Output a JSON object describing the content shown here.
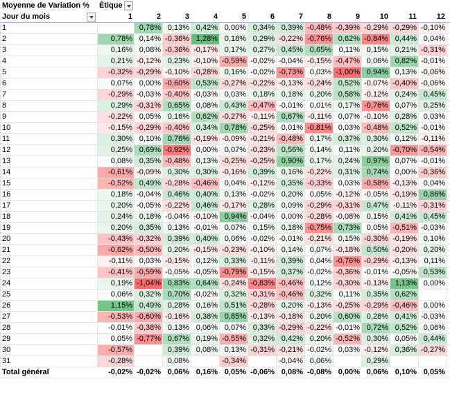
{
  "header": {
    "value_label": "Moyenne de Variation %",
    "column_label": "Étique",
    "row_label": "Jour du mois"
  },
  "columns": [
    1,
    2,
    3,
    4,
    5,
    6,
    7,
    8,
    9,
    10,
    11,
    12
  ],
  "rows": [
    {
      "label": "1",
      "cells": [
        null,
        "0,78%",
        "0,13%",
        "0,42%",
        "0,00%",
        "0,34%",
        "0,39%",
        "-0,48%",
        "-0,39%",
        "-0,29%",
        "-0,29%",
        "-0,10%"
      ]
    },
    {
      "label": "2",
      "cells": [
        "0,78%",
        "0,14%",
        "-0,36%",
        "1,28%",
        "0,18%",
        "0,29%",
        "-0,22%",
        "-0,76%",
        "0,62%",
        "-0,84%",
        "0,44%",
        "0,04%"
      ]
    },
    {
      "label": "3",
      "cells": [
        "0,16%",
        "0,08%",
        "-0,36%",
        "-0,17%",
        "0,17%",
        "0,27%",
        "0,45%",
        "0,65%",
        "0,11%",
        "0,15%",
        "0,21%",
        "-0,31%"
      ]
    },
    {
      "label": "4",
      "cells": [
        "0,21%",
        "-0,12%",
        "0,23%",
        "-0,10%",
        "-0,59%",
        "-0,02%",
        "-0,04%",
        "-0,15%",
        "-0,47%",
        "0,06%",
        "0,82%",
        "-0,01%"
      ]
    },
    {
      "label": "5",
      "cells": [
        "-0,32%",
        "-0,29%",
        "-0,10%",
        "-0,28%",
        "0,16%",
        "-0,02%",
        "-0,73%",
        "0,03%",
        "-1,00%",
        "0,94%",
        "0,13%",
        "-0,06%"
      ]
    },
    {
      "label": "6",
      "cells": [
        "0,07%",
        "0,00%",
        "-0,60%",
        "0,53%",
        "-0,27%",
        "-0,22%",
        "-0,13%",
        "-0,24%",
        "0,52%",
        "-0,07%",
        "-0,40%",
        "-0,06%"
      ]
    },
    {
      "label": "7",
      "cells": [
        "-0,29%",
        "-0,03%",
        "-0,40%",
        "-0,03%",
        "0,03%",
        "0,18%",
        "0,18%",
        "0,20%",
        "0,58%",
        "-0,12%",
        "0,24%",
        "0,45%"
      ]
    },
    {
      "label": "8",
      "cells": [
        "0,29%",
        "-0,31%",
        "0,65%",
        "0,08%",
        "0,43%",
        "-0,47%",
        "-0,01%",
        "0,01%",
        "0,17%",
        "-0,76%",
        "0,07%",
        "0,25%"
      ]
    },
    {
      "label": "9",
      "cells": [
        "-0,22%",
        "0,05%",
        "0,16%",
        "0,62%",
        "-0,27%",
        "-0,11%",
        "0,67%",
        "-0,11%",
        "0,07%",
        "-0,10%",
        "0,28%",
        "0,03%"
      ]
    },
    {
      "label": "10",
      "cells": [
        "-0,15%",
        "-0,29%",
        "-0,40%",
        "0,34%",
        "0,78%",
        "-0,25%",
        "0,01%",
        "-0,81%",
        "0,03%",
        "-0,48%",
        "0,52%",
        "-0,01%"
      ]
    },
    {
      "label": "11",
      "cells": [
        "0,30%",
        "0,10%",
        "0,76%",
        "-0,19%",
        "-0,09%",
        "-0,21%",
        "-0,48%",
        "0,17%",
        "0,37%",
        "0,30%",
        "0,12%",
        "-0,11%"
      ]
    },
    {
      "label": "12",
      "cells": [
        "0,25%",
        "0,69%",
        "-0,92%",
        "0,00%",
        "0,07%",
        "-0,23%",
        "0,56%",
        "0,14%",
        "0,11%",
        "0,20%",
        "-0,70%",
        "-0,54%"
      ]
    },
    {
      "label": "13",
      "cells": [
        "0,08%",
        "0,35%",
        "-0,48%",
        "0,13%",
        "-0,25%",
        "-0,25%",
        "0,90%",
        "0,17%",
        "0,24%",
        "0,97%",
        "0,07%",
        "-0,01%"
      ]
    },
    {
      "label": "14",
      "cells": [
        "-0,61%",
        "-0,09%",
        "0,30%",
        "0,30%",
        "-0,16%",
        "0,39%",
        "0,16%",
        "-0,22%",
        "0,31%",
        "0,74%",
        "0,00%",
        "-0,36%"
      ]
    },
    {
      "label": "15",
      "cells": [
        "-0,52%",
        "0,49%",
        "-0,28%",
        "-0,46%",
        "0,04%",
        "-0,12%",
        "0,35%",
        "-0,33%",
        "0,03%",
        "-0,58%",
        "-0,13%",
        "0,04%"
      ]
    },
    {
      "label": "16",
      "cells": [
        "0,18%",
        "-0,04%",
        "0,46%",
        "0,40%",
        "0,13%",
        "-0,02%",
        "0,20%",
        "0,05%",
        "-0,12%",
        "-0,05%",
        "-0,19%",
        "0,86%"
      ]
    },
    {
      "label": "17",
      "cells": [
        "0,20%",
        "-0,05%",
        "-0,22%",
        "0,46%",
        "-0,17%",
        "0,28%",
        "0,09%",
        "-0,29%",
        "-0,31%",
        "0,47%",
        "-0,11%",
        "-0,31%"
      ]
    },
    {
      "label": "18",
      "cells": [
        "0,24%",
        "0,18%",
        "-0,04%",
        "-0,10%",
        "0,94%",
        "-0,04%",
        "0,00%",
        "-0,28%",
        "-0,08%",
        "0,15%",
        "0,41%",
        "0,45%"
      ]
    },
    {
      "label": "19",
      "cells": [
        "0,20%",
        "0,35%",
        "0,13%",
        "-0,01%",
        "0,07%",
        "0,15%",
        "0,18%",
        "-0,75%",
        "0,73%",
        "0,05%",
        "-0,51%",
        "-0,03%"
      ]
    },
    {
      "label": "20",
      "cells": [
        "-0,43%",
        "-0,32%",
        "0,39%",
        "0,40%",
        "0,06%",
        "-0,02%",
        "-0,01%",
        "-0,21%",
        "0,15%",
        "-0,30%",
        "-0,19%",
        "0,10%"
      ]
    },
    {
      "label": "21",
      "cells": [
        "-0,62%",
        "-0,50%",
        "0,20%",
        "-0,15%",
        "-0,23%",
        "-0,10%",
        "0,14%",
        "0,07%",
        "-0,18%",
        "0,50%",
        "-0,20%",
        "0,20%"
      ]
    },
    {
      "label": "22",
      "cells": [
        "-0,11%",
        "0,03%",
        "-0,15%",
        "0,12%",
        "0,33%",
        "-0,11%",
        "0,39%",
        "0,04%",
        "-0,76%",
        "-0,29%",
        "-0,13%",
        "0,11%"
      ]
    },
    {
      "label": "23",
      "cells": [
        "-0,41%",
        "-0,59%",
        "-0,05%",
        "-0,05%",
        "-0,79%",
        "-0,15%",
        "0,37%",
        "-0,02%",
        "-0,36%",
        "-0,01%",
        "-0,05%",
        "0,53%"
      ]
    },
    {
      "label": "24",
      "cells": [
        "0,19%",
        "-1,04%",
        "0,83%",
        "0,64%",
        "-0,24%",
        "-0,83%",
        "-0,46%",
        "0,12%",
        "-0,30%",
        "-0,13%",
        "1,13%",
        "0,00%"
      ]
    },
    {
      "label": "25",
      "cells": [
        "0,06%",
        "0,32%",
        "0,70%",
        "-0,02%",
        "0,32%",
        "-0,31%",
        "-0,46%",
        "0,32%",
        "0,11%",
        "0,35%",
        "0,62%",
        null
      ]
    },
    {
      "label": "26",
      "cells": [
        "1,15%",
        "0,49%",
        "0,28%",
        "0,16%",
        "0,51%",
        "-0,28%",
        "0,20%",
        "-0,13%",
        "-0,25%",
        "-0,29%",
        "-0,46%",
        "0,00%"
      ]
    },
    {
      "label": "27",
      "cells": [
        "-0,53%",
        "-0,60%",
        "-0,16%",
        "0,38%",
        "0,85%",
        "-0,13%",
        "-0,18%",
        "0,20%",
        "0,60%",
        "0,28%",
        "0,41%",
        "-0,03%"
      ]
    },
    {
      "label": "28",
      "cells": [
        "-0,01%",
        "-0,38%",
        "0,13%",
        "0,06%",
        "0,07%",
        "0,33%",
        "-0,29%",
        "-0,22%",
        "-0,01%",
        "0,72%",
        "0,52%",
        "0,06%"
      ]
    },
    {
      "label": "29",
      "cells": [
        "0,05%",
        "-0,77%",
        "0,67%",
        "0,19%",
        "-0,55%",
        "0,32%",
        "0,42%",
        "0,20%",
        "-0,52%",
        "0,30%",
        "0,05%",
        "0,44%"
      ]
    },
    {
      "label": "30",
      "cells": [
        "-0,57%",
        null,
        "0,39%",
        "0,08%",
        "0,13%",
        "-0,31%",
        "-0,21%",
        "-0,02%",
        "0,03%",
        "-0,12%",
        "0,36%",
        "-0,27%"
      ]
    },
    {
      "label": "31",
      "cells": [
        "-0,28%",
        null,
        "0,08%",
        null,
        "-0,34%",
        null,
        "-0,04%",
        "0,06%",
        null,
        "0,29%",
        null,
        null
      ]
    }
  ],
  "total": {
    "label": "Total général",
    "cells": [
      "-0,02%",
      "-0,02%",
      "0,06%",
      "0,16%",
      "0,05%",
      "-0,06%",
      "0,08%",
      "-0,08%",
      "0,00%",
      "0,06%",
      "0,10%",
      "0,05%"
    ]
  }
}
